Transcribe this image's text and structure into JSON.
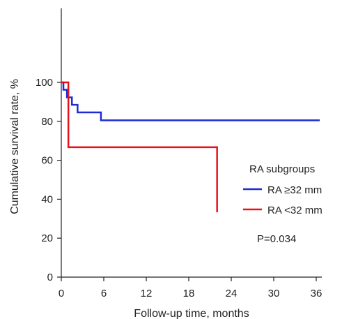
{
  "chart_data": {
    "type": "line",
    "step": true,
    "xlabel": "Follow-up time, months",
    "ylabel": "Cumulative survival rate, %",
    "xlim": [
      0,
      40
    ],
    "ylim": [
      0,
      110
    ],
    "xticks": [
      0,
      6,
      12,
      18,
      24,
      30,
      36
    ],
    "yticks": [
      0,
      20,
      40,
      60,
      80,
      100
    ],
    "grid": false,
    "legend": {
      "title": "RA subgroups",
      "placement": "right-middle"
    },
    "annotation": "P=0.034",
    "series": [
      {
        "name": "RA ≥32 mm",
        "color": "#1f2bd6",
        "x": [
          0,
          0.3,
          0.8,
          1.5,
          2.3,
          5.6,
          36.5
        ],
        "y": [
          100,
          96.2,
          92.3,
          88.5,
          84.6,
          80.5,
          80.5
        ]
      },
      {
        "name": "RA <32 mm",
        "color": "#e8121a",
        "x": [
          0,
          0.6,
          1.0,
          22
        ],
        "y": [
          100,
          100,
          66.7,
          33.3
        ],
        "drops": [
          [
            0.6,
            100,
            66.7
          ],
          [
            1.0,
            66.7,
            33.3
          ]
        ]
      }
    ]
  }
}
